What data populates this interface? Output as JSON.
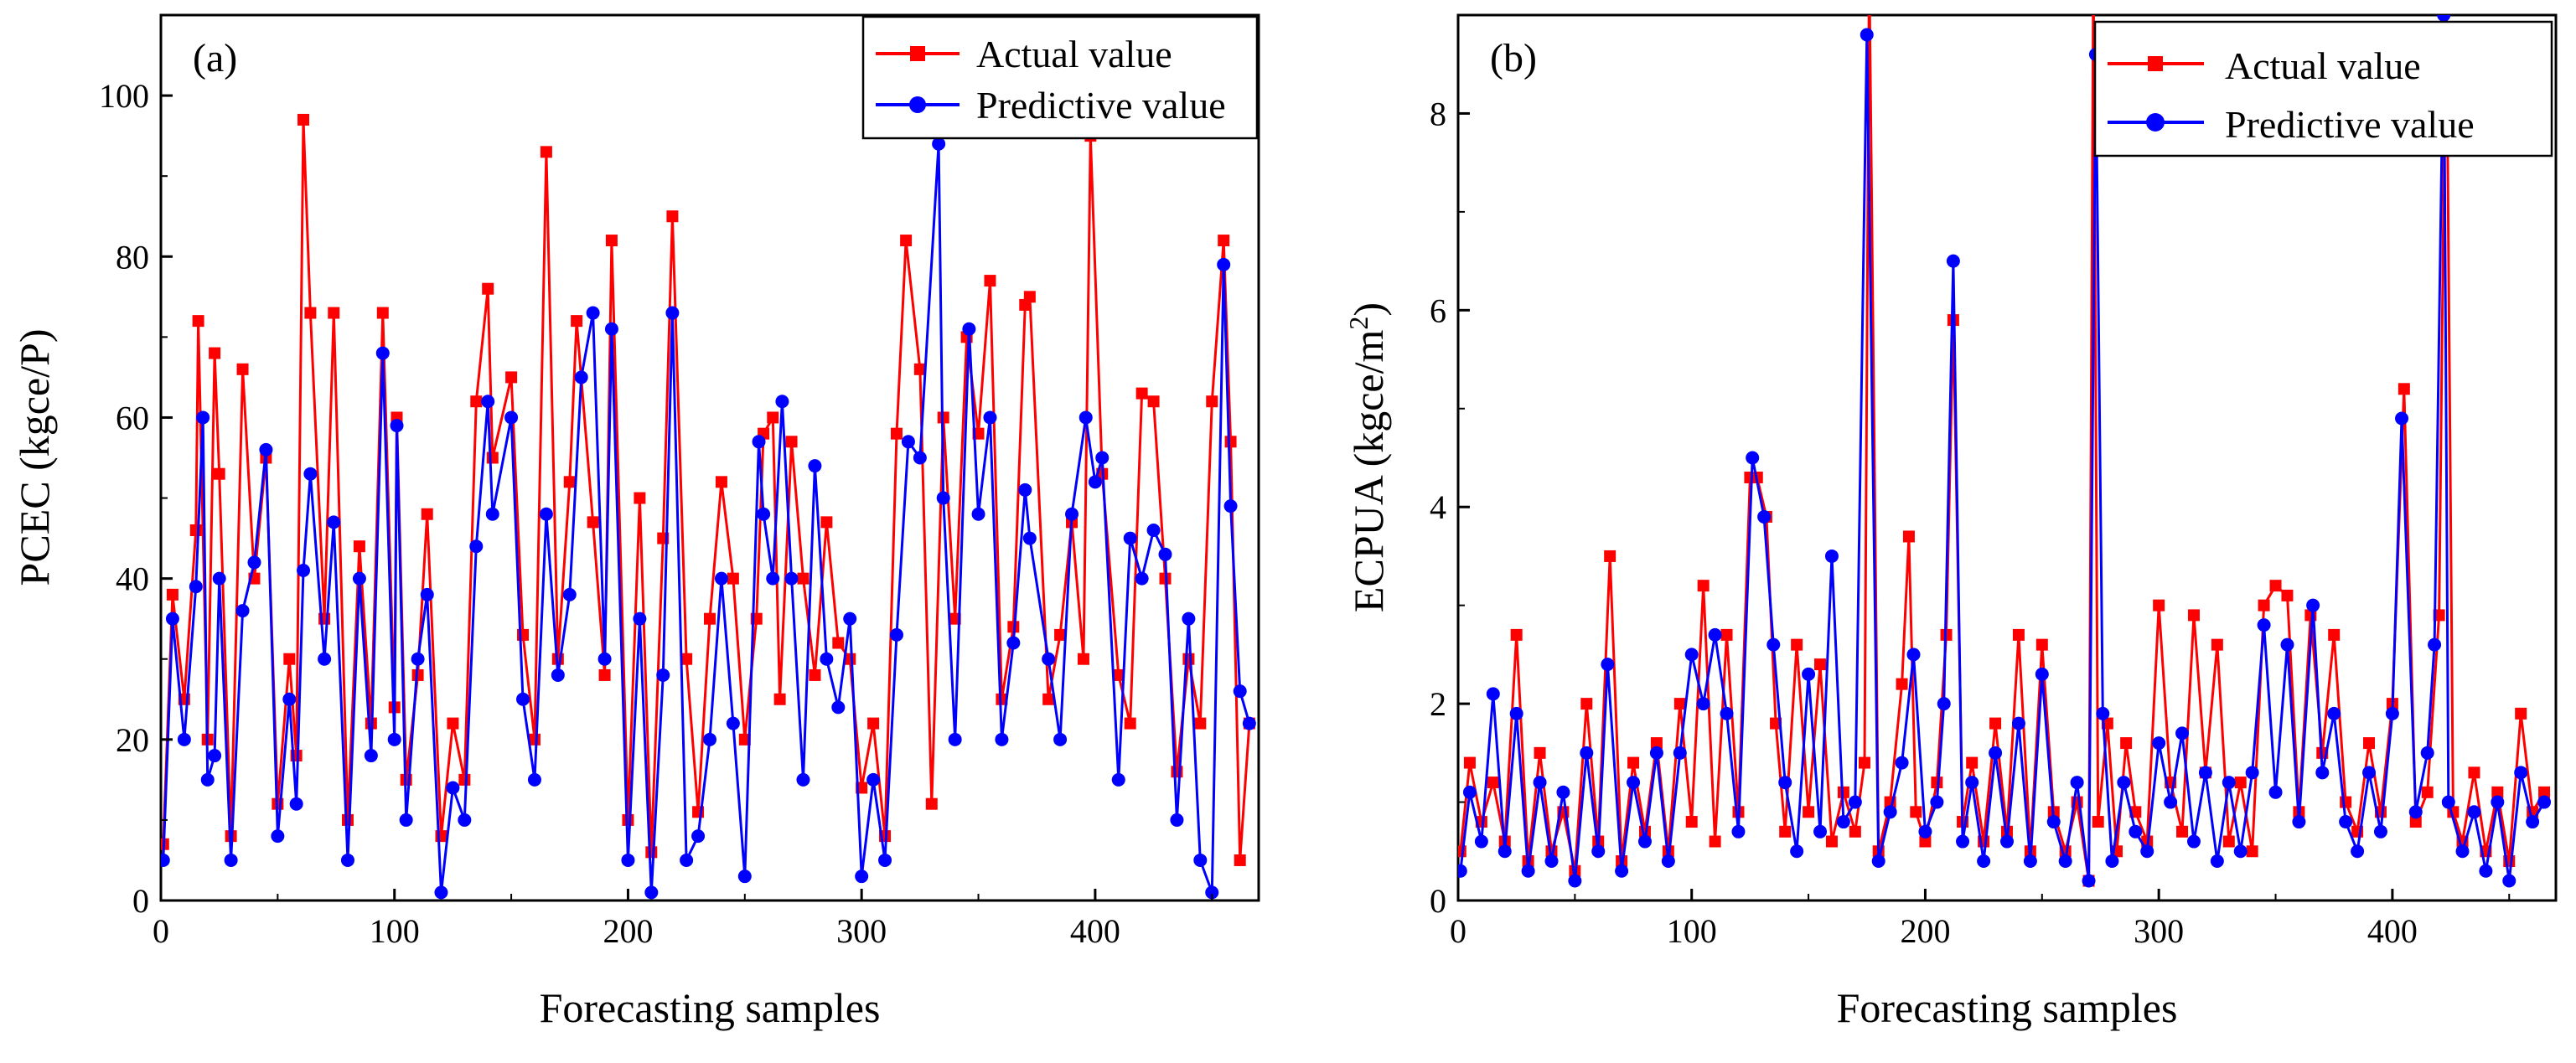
{
  "colors": {
    "actual": "#ff0000",
    "predicted": "#0000ff",
    "axis": "#000000",
    "background": "#ffffff"
  },
  "chart_data": [
    {
      "type": "line",
      "panel_label": "(a)",
      "xlabel": "Forecasting samples",
      "ylabel": "PCEC (kgce/P)",
      "xlim": [
        0,
        470
      ],
      "ylim": [
        0,
        110
      ],
      "x_ticks": [
        0,
        100,
        200,
        300,
        400
      ],
      "y_ticks": [
        0,
        20,
        40,
        60,
        80,
        100
      ],
      "grid": false,
      "legend_position": "top-right",
      "legend": [
        "Actual value",
        "Predictive value"
      ],
      "series": [
        {
          "name": "Actual value",
          "marker": "square",
          "color": "#ff0000",
          "x": [
            1,
            5,
            10,
            15,
            16,
            20,
            23,
            25,
            30,
            35,
            40,
            45,
            50,
            55,
            58,
            61,
            64,
            70,
            74,
            80,
            85,
            90,
            95,
            100,
            101,
            105,
            110,
            114,
            120,
            125,
            130,
            135,
            140,
            142,
            150,
            155,
            160,
            165,
            170,
            175,
            178,
            185,
            190,
            193,
            200,
            205,
            210,
            215,
            219,
            225,
            230,
            235,
            240,
            245,
            250,
            255,
            258,
            262,
            265,
            270,
            275,
            280,
            285,
            290,
            295,
            300,
            305,
            310,
            315,
            319,
            325,
            330,
            335,
            340,
            345,
            350,
            355,
            360,
            365,
            370,
            372,
            380,
            385,
            390,
            395,
            398,
            403,
            410,
            415,
            420,
            425,
            430,
            435,
            440,
            445,
            450,
            455,
            458,
            462,
            466
          ],
          "y": [
            7,
            38,
            25,
            46,
            72,
            20,
            68,
            53,
            8,
            66,
            40,
            55,
            12,
            30,
            18,
            97,
            73,
            35,
            73,
            10,
            44,
            22,
            73,
            24,
            60,
            15,
            28,
            48,
            8,
            22,
            15,
            62,
            76,
            55,
            65,
            33,
            20,
            93,
            30,
            52,
            72,
            47,
            28,
            82,
            10,
            50,
            6,
            45,
            85,
            30,
            11,
            35,
            52,
            40,
            20,
            35,
            58,
            60,
            25,
            57,
            40,
            28,
            47,
            32,
            30,
            14,
            22,
            8,
            58,
            82,
            66,
            12,
            60,
            35,
            70,
            58,
            77,
            25,
            34,
            74,
            75,
            25,
            33,
            47,
            30,
            95,
            53,
            28,
            22,
            63,
            62,
            40,
            16,
            30,
            22,
            62,
            82,
            57,
            5,
            22
          ]
        },
        {
          "name": "Predictive value",
          "marker": "circle",
          "color": "#0000ff",
          "x": [
            1,
            5,
            10,
            15,
            18,
            20,
            23,
            25,
            30,
            35,
            40,
            45,
            50,
            55,
            58,
            61,
            64,
            70,
            74,
            80,
            85,
            90,
            95,
            100,
            101,
            105,
            110,
            114,
            120,
            125,
            130,
            135,
            140,
            142,
            150,
            155,
            160,
            165,
            170,
            175,
            180,
            185,
            190,
            193,
            200,
            205,
            210,
            215,
            219,
            225,
            230,
            235,
            240,
            245,
            250,
            256,
            258,
            262,
            266,
            270,
            275,
            280,
            285,
            290,
            295,
            300,
            305,
            310,
            315,
            320,
            325,
            333,
            335,
            340,
            346,
            350,
            355,
            360,
            365,
            370,
            372,
            380,
            385,
            390,
            396,
            400,
            403,
            410,
            415,
            420,
            425,
            430,
            435,
            440,
            445,
            450,
            455,
            458,
            462,
            466
          ],
          "y": [
            5,
            35,
            20,
            39,
            60,
            15,
            18,
            40,
            5,
            36,
            42,
            56,
            8,
            25,
            12,
            41,
            53,
            30,
            47,
            5,
            40,
            18,
            68,
            20,
            59,
            10,
            30,
            38,
            1,
            14,
            10,
            44,
            62,
            48,
            60,
            25,
            15,
            48,
            28,
            38,
            65,
            73,
            30,
            71,
            5,
            35,
            1,
            28,
            73,
            5,
            8,
            20,
            40,
            22,
            3,
            57,
            48,
            40,
            62,
            40,
            15,
            54,
            30,
            24,
            35,
            3,
            15,
            5,
            33,
            57,
            55,
            94,
            50,
            20,
            71,
            48,
            60,
            20,
            32,
            51,
            45,
            30,
            20,
            48,
            60,
            52,
            55,
            15,
            45,
            40,
            46,
            43,
            10,
            35,
            5,
            1,
            79,
            49,
            26,
            22
          ]
        }
      ]
    },
    {
      "type": "line",
      "panel_label": "(b)",
      "xlabel": "Forecasting samples",
      "ylabel": "ECPUA (kgce/m2)",
      "xlim": [
        0,
        470
      ],
      "ylim": [
        0,
        9
      ],
      "x_ticks": [
        0,
        100,
        200,
        300,
        400
      ],
      "y_ticks": [
        0,
        2,
        4,
        6,
        8
      ],
      "grid": false,
      "legend_position": "top-right",
      "legend": [
        "Actual value",
        "Predictive value"
      ],
      "series": [
        {
          "name": "Actual value",
          "marker": "square",
          "color": "#ff0000",
          "x": [
            1,
            5,
            10,
            15,
            20,
            25,
            30,
            35,
            40,
            45,
            50,
            55,
            60,
            65,
            70,
            75,
            80,
            85,
            90,
            95,
            100,
            105,
            110,
            115,
            120,
            125,
            128,
            132,
            136,
            140,
            145,
            150,
            155,
            160,
            165,
            170,
            174,
            176,
            180,
            185,
            190,
            193,
            196,
            200,
            205,
            209,
            212,
            216,
            220,
            225,
            230,
            235,
            240,
            245,
            250,
            255,
            260,
            265,
            270,
            272,
            274,
            278,
            282,
            286,
            290,
            295,
            300,
            305,
            310,
            315,
            320,
            325,
            330,
            335,
            340,
            345,
            350,
            355,
            360,
            365,
            370,
            375,
            380,
            385,
            390,
            395,
            400,
            405,
            410,
            415,
            420,
            423,
            426,
            430,
            435,
            440,
            445,
            450,
            455,
            460,
            465
          ],
          "y": [
            0.5,
            1.4,
            0.8,
            1.2,
            0.6,
            2.7,
            0.4,
            1.5,
            0.5,
            0.9,
            0.3,
            2.0,
            0.6,
            3.5,
            0.4,
            1.4,
            0.7,
            1.6,
            0.5,
            2.0,
            0.8,
            3.2,
            0.6,
            2.7,
            0.9,
            4.3,
            4.3,
            3.9,
            1.8,
            0.7,
            2.6,
            0.9,
            2.4,
            0.6,
            1.1,
            0.7,
            1.4,
            9.5,
            0.5,
            1.0,
            2.2,
            3.7,
            0.9,
            0.6,
            1.2,
            2.7,
            5.9,
            0.8,
            1.4,
            0.6,
            1.8,
            0.7,
            2.7,
            0.5,
            2.6,
            0.9,
            0.5,
            1.0,
            0.2,
            9.5,
            0.8,
            1.8,
            0.5,
            1.6,
            0.9,
            0.6,
            3.0,
            1.2,
            0.7,
            2.9,
            1.3,
            2.6,
            0.6,
            1.2,
            0.5,
            3.0,
            3.2,
            3.1,
            0.9,
            2.9,
            1.5,
            2.7,
            1.0,
            0.7,
            1.6,
            0.9,
            2.0,
            5.2,
            0.8,
            1.1,
            2.9,
            9.5,
            0.9,
            0.6,
            1.3,
            0.5,
            1.1,
            0.4,
            1.9,
            0.9,
            1.1
          ]
        },
        {
          "name": "Predictive value",
          "marker": "circle",
          "color": "#0000ff",
          "x": [
            1,
            5,
            10,
            15,
            20,
            25,
            30,
            35,
            40,
            45,
            50,
            55,
            60,
            64,
            70,
            75,
            80,
            85,
            90,
            95,
            100,
            105,
            110,
            115,
            120,
            126,
            131,
            135,
            140,
            145,
            150,
            155,
            160,
            165,
            170,
            175,
            180,
            185,
            190,
            195,
            200,
            205,
            208,
            212,
            216,
            220,
            225,
            230,
            235,
            240,
            245,
            250,
            255,
            260,
            265,
            270,
            273,
            276,
            280,
            285,
            290,
            295,
            300,
            305,
            310,
            315,
            320,
            325,
            330,
            335,
            340,
            345,
            350,
            355,
            360,
            366,
            370,
            375,
            380,
            385,
            390,
            395,
            400,
            404,
            410,
            415,
            418,
            422,
            424,
            430,
            435,
            440,
            445,
            450,
            455,
            460,
            465
          ],
          "y": [
            0.3,
            1.1,
            0.6,
            2.1,
            0.5,
            1.9,
            0.3,
            1.2,
            0.4,
            1.1,
            0.2,
            1.5,
            0.5,
            2.4,
            0.3,
            1.2,
            0.6,
            1.5,
            0.4,
            1.5,
            2.5,
            2.0,
            2.7,
            1.9,
            0.7,
            4.5,
            3.9,
            2.6,
            1.2,
            0.5,
            2.3,
            0.7,
            3.5,
            0.8,
            1.0,
            8.8,
            0.4,
            0.9,
            1.4,
            2.5,
            0.7,
            1.0,
            2.0,
            6.5,
            0.6,
            1.2,
            0.4,
            1.5,
            0.6,
            1.8,
            0.4,
            2.3,
            0.8,
            0.4,
            1.2,
            0.2,
            8.6,
            1.9,
            0.4,
            1.2,
            0.7,
            0.5,
            1.6,
            1.0,
            1.7,
            0.6,
            1.3,
            0.4,
            1.2,
            0.5,
            1.3,
            2.8,
            1.1,
            2.6,
            0.8,
            3.0,
            1.3,
            1.9,
            0.8,
            0.5,
            1.3,
            0.7,
            1.9,
            4.9,
            0.9,
            1.5,
            2.6,
            9.0,
            1.0,
            0.5,
            0.9,
            0.3,
            1.0,
            0.2,
            1.3,
            0.8,
            1.0
          ]
        }
      ]
    }
  ]
}
